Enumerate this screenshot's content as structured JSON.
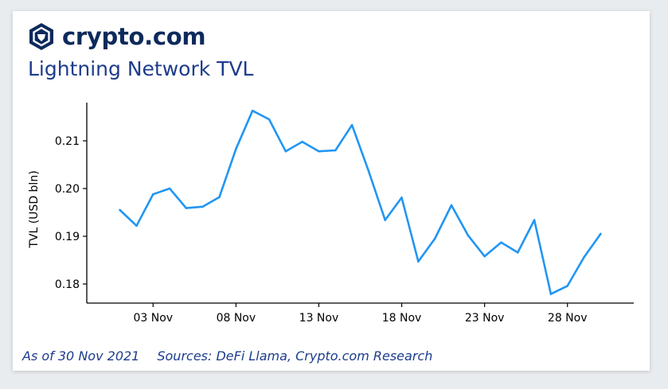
{
  "brand": {
    "name": "crypto.com",
    "color": "#0d2a5c"
  },
  "title": "Lightning Network TVL",
  "footer": {
    "as_of": "As of 30 Nov 2021",
    "sources": "Sources: DeFi Llama, Crypto.com Research"
  },
  "chart_data": {
    "type": "line",
    "title": "Lightning Network TVL",
    "xlabel": "",
    "ylabel": "TVL (USD bln)",
    "x_ticks": [
      "03 Nov",
      "08 Nov",
      "13 Nov",
      "18 Nov",
      "23 Nov",
      "28 Nov"
    ],
    "y_ticks": [
      0.18,
      0.19,
      0.2,
      0.21
    ],
    "ylim": [
      0.176,
      0.218
    ],
    "xlim": [
      "2021-10-30",
      "2021-12-02"
    ],
    "grid": false,
    "line_color": "#2196f3",
    "series": [
      {
        "x": [
          "2021-11-01",
          "2021-11-02",
          "2021-11-03",
          "2021-11-04",
          "2021-11-05",
          "2021-11-06",
          "2021-11-07",
          "2021-11-08",
          "2021-11-09",
          "2021-11-10",
          "2021-11-11",
          "2021-11-12",
          "2021-11-13",
          "2021-11-14",
          "2021-11-15",
          "2021-11-16",
          "2021-11-17",
          "2021-11-18",
          "2021-11-19",
          "2021-11-20",
          "2021-11-21",
          "2021-11-22",
          "2021-11-23",
          "2021-11-24",
          "2021-11-25",
          "2021-11-26",
          "2021-11-27",
          "2021-11-28",
          "2021-11-29",
          "2021-11-30"
        ],
        "values": [
          0.1955,
          0.1922,
          0.1988,
          0.2,
          0.1959,
          0.1962,
          0.1982,
          0.2083,
          0.2163,
          0.2145,
          0.2078,
          0.2098,
          0.2078,
          0.208,
          0.2133,
          0.2037,
          0.1934,
          0.1981,
          0.1847,
          0.1895,
          0.1965,
          0.1902,
          0.1858,
          0.1887,
          0.1866,
          0.1934,
          0.1779,
          0.1796,
          0.1856,
          0.1905
        ]
      }
    ]
  }
}
